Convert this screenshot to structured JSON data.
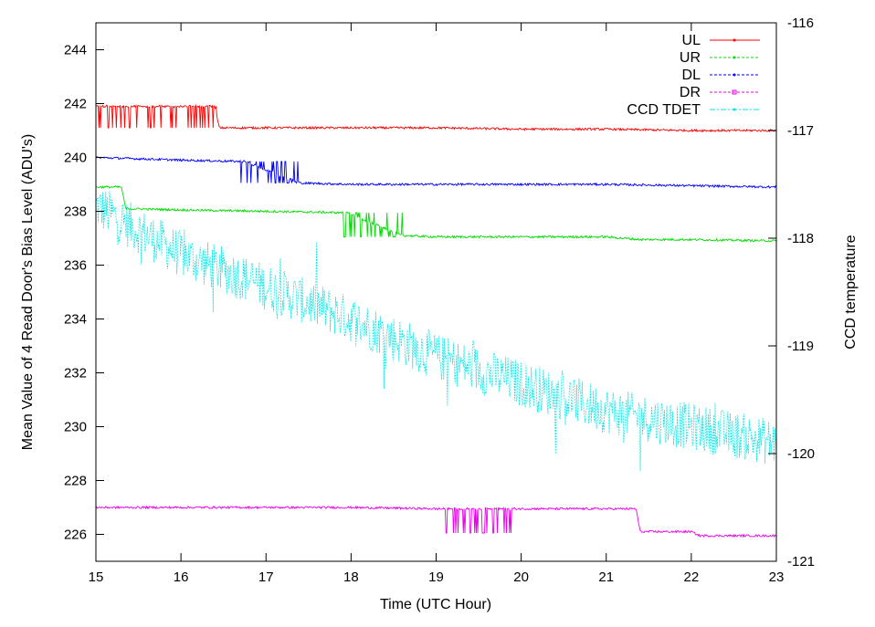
{
  "chart_data": {
    "type": "line",
    "title": "",
    "xlabel": "Time (UTC Hour)",
    "ylabel": "Mean Value of 4 Read Door's Bias Level (ADU's)",
    "y2label": "CCD temperature",
    "xlim": [
      15,
      23
    ],
    "ylim": [
      225,
      245
    ],
    "y2lim": [
      -121,
      -116
    ],
    "x_ticks": [
      "15",
      "16",
      "17",
      "18",
      "19",
      "20",
      "21",
      "22",
      "23"
    ],
    "y_ticks": [
      "226",
      "228",
      "230",
      "232",
      "234",
      "236",
      "238",
      "240",
      "242",
      "244"
    ],
    "y2_ticks": [
      "-121",
      "-120",
      "-119",
      "-118",
      "-117",
      "-116"
    ],
    "grid": false,
    "legend_position": "top-right",
    "series": [
      {
        "name": "UL",
        "axis": "left",
        "color": "#ff0000",
        "marker": "dot",
        "x": [
          15.0,
          15.5,
          16.0,
          16.4,
          16.45,
          17.0,
          18.0,
          19.0,
          20.0,
          21.0,
          22.0,
          23.0
        ],
        "values": [
          241.9,
          241.9,
          241.9,
          241.9,
          241.1,
          241.1,
          241.1,
          241.1,
          241.05,
          241.05,
          241.0,
          241.0
        ],
        "noisy_x": [
          15.0,
          16.45
        ],
        "noisy_low": 241.1,
        "noisy_high": 241.9
      },
      {
        "name": "UR",
        "axis": "left",
        "color": "#00dd00",
        "marker": "dot",
        "x": [
          15.0,
          15.3,
          15.35,
          16.0,
          17.0,
          17.9,
          17.95,
          18.6,
          19.0,
          20.0,
          21.0,
          21.4,
          22.0,
          23.0
        ],
        "values": [
          238.9,
          238.9,
          238.1,
          238.05,
          238.0,
          237.95,
          237.95,
          237.1,
          237.05,
          237.05,
          237.05,
          236.95,
          236.95,
          236.9
        ],
        "noisy_x": [
          17.9,
          18.6
        ],
        "noisy_low": 237.05,
        "noisy_high": 237.95
      },
      {
        "name": "DL",
        "axis": "left",
        "color": "#0000ff",
        "marker": "dot",
        "x": [
          15.0,
          16.0,
          16.7,
          16.75,
          17.4,
          18.0,
          19.0,
          20.0,
          21.0,
          22.0,
          23.0
        ],
        "values": [
          240.0,
          239.9,
          239.85,
          239.85,
          239.05,
          239.0,
          239.0,
          239.0,
          239.0,
          238.95,
          238.9
        ],
        "noisy_x": [
          16.7,
          17.4
        ],
        "noisy_low": 239.05,
        "noisy_high": 239.85
      },
      {
        "name": "DR",
        "axis": "left",
        "color": "#ee00ee",
        "marker": "square",
        "x": [
          15.0,
          16.0,
          17.0,
          18.0,
          19.0,
          20.0,
          21.0,
          21.35,
          21.4,
          22.0,
          22.1,
          23.0
        ],
        "values": [
          227.0,
          227.0,
          227.0,
          227.0,
          226.95,
          226.95,
          226.95,
          226.95,
          226.1,
          226.1,
          225.95,
          225.95
        ],
        "noisy_x": [
          19.05,
          19.9
        ],
        "noisy_low": 226.05,
        "noisy_high": 226.95
      },
      {
        "name": "CCD TDET",
        "axis": "right",
        "color": "#00e5e5",
        "marker": "dot",
        "x": [
          15.0,
          16.0,
          17.0,
          18.0,
          19.0,
          20.0,
          21.0,
          22.0,
          23.0
        ],
        "values": [
          -117.7,
          -118.15,
          -118.45,
          -118.75,
          -119.1,
          -119.35,
          -119.6,
          -119.75,
          -119.9
        ],
        "noise_band": 0.22
      }
    ]
  }
}
